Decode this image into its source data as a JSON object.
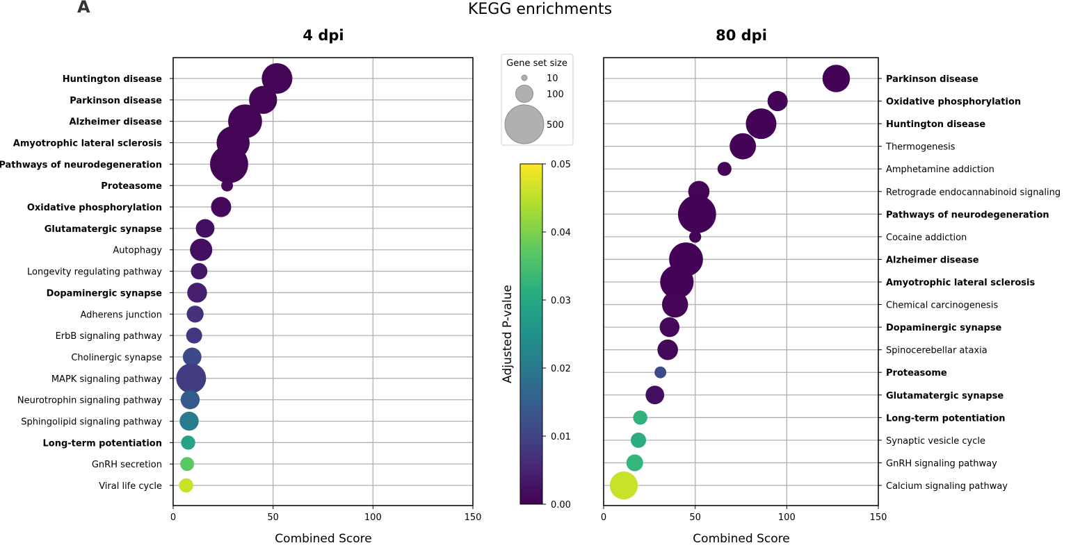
{
  "figure": {
    "panel_label": "A",
    "title": "KEGG enrichments"
  },
  "colorbar": {
    "label": "Adjusted P-value",
    "ticks": [
      0.0,
      0.01,
      0.02,
      0.03,
      0.04,
      0.05
    ],
    "tick_labels": [
      "0.00",
      "0.01",
      "0.02",
      "0.03",
      "0.04",
      "0.05"
    ],
    "range": [
      0,
      0.05
    ],
    "colormap": "viridis"
  },
  "size_legend": {
    "title": "Gene set size",
    "entries": [
      {
        "label": "10",
        "value": 10
      },
      {
        "label": "100",
        "value": 100
      },
      {
        "label": "500",
        "value": 500
      }
    ]
  },
  "chart_data": [
    {
      "type": "scatter",
      "title": "4 dpi",
      "xlabel": "Combined Score",
      "ylabel": "",
      "xlim": [
        0,
        150
      ],
      "xticks": [
        0,
        50,
        100,
        150
      ],
      "label_side": "left",
      "grid": true,
      "points": [
        {
          "term": "Huntington disease",
          "bold": true,
          "score": 52,
          "size": 310,
          "padj": 0.0005
        },
        {
          "term": "Parkinson disease",
          "bold": true,
          "score": 45,
          "size": 260,
          "padj": 0.0005
        },
        {
          "term": "Alzheimer disease",
          "bold": true,
          "score": 36,
          "size": 380,
          "padj": 0.0005
        },
        {
          "term": "Amyotrophic lateral sclerosis",
          "bold": true,
          "score": 30,
          "size": 360,
          "padj": 0.0005
        },
        {
          "term": "Pathways of neurodegeneration",
          "bold": true,
          "score": 28,
          "size": 480,
          "padj": 0.0005
        },
        {
          "term": "Proteasome",
          "bold": true,
          "score": 27,
          "size": 46,
          "padj": 0.001
        },
        {
          "term": "Oxidative phosphorylation",
          "bold": true,
          "score": 24,
          "size": 135,
          "padj": 0.001
        },
        {
          "term": "Glutamatergic synapse",
          "bold": true,
          "score": 16,
          "size": 115,
          "padj": 0.002
        },
        {
          "term": "Autophagy",
          "bold": false,
          "score": 14,
          "size": 165,
          "padj": 0.002
        },
        {
          "term": "Longevity regulating pathway",
          "bold": false,
          "score": 13,
          "size": 90,
          "padj": 0.003
        },
        {
          "term": "Dopaminergic synapse",
          "bold": true,
          "score": 12,
          "size": 130,
          "padj": 0.004
        },
        {
          "term": "Adherens junction",
          "bold": false,
          "score": 11,
          "size": 95,
          "padj": 0.007
        },
        {
          "term": "ErbB signaling pathway",
          "bold": false,
          "score": 10.5,
          "size": 85,
          "padj": 0.008
        },
        {
          "term": "Cholinergic synapse",
          "bold": false,
          "score": 9.5,
          "size": 115,
          "padj": 0.011
        },
        {
          "term": "MAPK signaling pathway",
          "bold": false,
          "score": 9,
          "size": 295,
          "padj": 0.009
        },
        {
          "term": "Neurotrophin signaling pathway",
          "bold": false,
          "score": 8.5,
          "size": 120,
          "padj": 0.014
        },
        {
          "term": "Sphingolipid signaling pathway",
          "bold": false,
          "score": 8,
          "size": 120,
          "padj": 0.021
        },
        {
          "term": "Long-term potentiation",
          "bold": true,
          "score": 7.5,
          "size": 67,
          "padj": 0.029
        },
        {
          "term": "GnRH secretion",
          "bold": false,
          "score": 7,
          "size": 64,
          "padj": 0.037
        },
        {
          "term": "Viral life cycle",
          "bold": false,
          "score": 6.5,
          "size": 67,
          "padj": 0.046
        }
      ]
    },
    {
      "type": "scatter",
      "title": "80 dpi",
      "xlabel": "Combined Score",
      "ylabel": "",
      "xlim": [
        0,
        150
      ],
      "xticks": [
        0,
        50,
        100,
        150
      ],
      "label_side": "right",
      "grid": true,
      "points": [
        {
          "term": "Parkinson disease",
          "bold": true,
          "score": 127,
          "size": 250,
          "padj": 0.0003
        },
        {
          "term": "Oxidative phosphorylation",
          "bold": true,
          "score": 95,
          "size": 135,
          "padj": 0.0003
        },
        {
          "term": "Huntington disease",
          "bold": true,
          "score": 86,
          "size": 310,
          "padj": 0.0003
        },
        {
          "term": "Thermogenesis",
          "bold": false,
          "score": 76,
          "size": 230,
          "padj": 0.0003
        },
        {
          "term": "Amphetamine addiction",
          "bold": false,
          "score": 66,
          "size": 65,
          "padj": 0.0005
        },
        {
          "term": "Retrograde endocannabinoid signaling",
          "bold": false,
          "score": 52,
          "size": 150,
          "padj": 0.0005
        },
        {
          "term": "Pathways of neurodegeneration",
          "bold": true,
          "score": 51,
          "size": 480,
          "padj": 0.0003
        },
        {
          "term": "Cocaine addiction",
          "bold": false,
          "score": 50,
          "size": 48,
          "padj": 0.0005
        },
        {
          "term": "Alzheimer disease",
          "bold": true,
          "score": 45,
          "size": 380,
          "padj": 0.0003
        },
        {
          "term": "Amyotrophic lateral sclerosis",
          "bold": true,
          "score": 40,
          "size": 370,
          "padj": 0.0003
        },
        {
          "term": "Chemical carcinogenesis",
          "bold": false,
          "score": 39,
          "size": 225,
          "padj": 0.0005
        },
        {
          "term": "Dopaminergic synapse",
          "bold": true,
          "score": 36,
          "size": 130,
          "padj": 0.0008
        },
        {
          "term": "Spinocerebellar ataxia",
          "bold": false,
          "score": 35,
          "size": 140,
          "padj": 0.0008
        },
        {
          "term": "Proteasome",
          "bold": true,
          "score": 31,
          "size": 46,
          "padj": 0.011
        },
        {
          "term": "Glutamatergic synapse",
          "bold": true,
          "score": 28,
          "size": 115,
          "padj": 0.002
        },
        {
          "term": "Long-term potentiation",
          "bold": true,
          "score": 20,
          "size": 67,
          "padj": 0.032
        },
        {
          "term": "Synaptic vesicle cycle",
          "bold": false,
          "score": 19,
          "size": 78,
          "padj": 0.031
        },
        {
          "term": "GnRH signaling pathway",
          "bold": false,
          "score": 17,
          "size": 93,
          "padj": 0.033
        },
        {
          "term": "Calcium signaling pathway",
          "bold": false,
          "score": 11,
          "size": 260,
          "padj": 0.046
        }
      ]
    }
  ]
}
